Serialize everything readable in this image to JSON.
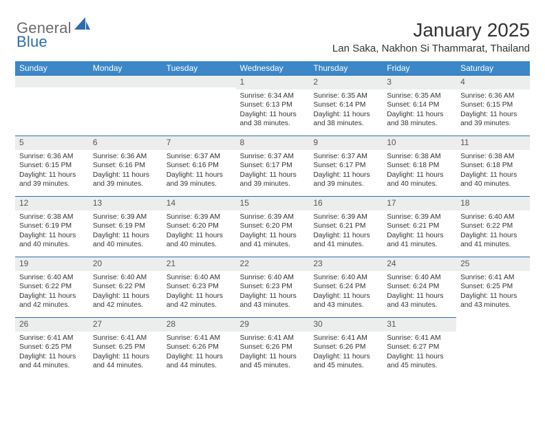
{
  "logo": {
    "general": "General",
    "blue": "Blue"
  },
  "title": "January 2025",
  "location": "Lan Saka, Nakhon Si Thammarat, Thailand",
  "colors": {
    "header_bg": "#3b87c8",
    "header_text": "#ffffff",
    "daynum_bg": "#eceded",
    "daynum_text": "#555555",
    "border_top": "#2a6db0",
    "body_text": "#333333",
    "logo_gray": "#6b6b6b",
    "logo_blue": "#2a6db0"
  },
  "day_names": [
    "Sunday",
    "Monday",
    "Tuesday",
    "Wednesday",
    "Thursday",
    "Friday",
    "Saturday"
  ],
  "weeks": [
    [
      null,
      null,
      null,
      {
        "n": "1",
        "sr": "6:34 AM",
        "ss": "6:13 PM",
        "dl": "11 hours and 38 minutes."
      },
      {
        "n": "2",
        "sr": "6:35 AM",
        "ss": "6:14 PM",
        "dl": "11 hours and 38 minutes."
      },
      {
        "n": "3",
        "sr": "6:35 AM",
        "ss": "6:14 PM",
        "dl": "11 hours and 38 minutes."
      },
      {
        "n": "4",
        "sr": "6:36 AM",
        "ss": "6:15 PM",
        "dl": "11 hours and 39 minutes."
      }
    ],
    [
      {
        "n": "5",
        "sr": "6:36 AM",
        "ss": "6:15 PM",
        "dl": "11 hours and 39 minutes."
      },
      {
        "n": "6",
        "sr": "6:36 AM",
        "ss": "6:16 PM",
        "dl": "11 hours and 39 minutes."
      },
      {
        "n": "7",
        "sr": "6:37 AM",
        "ss": "6:16 PM",
        "dl": "11 hours and 39 minutes."
      },
      {
        "n": "8",
        "sr": "6:37 AM",
        "ss": "6:17 PM",
        "dl": "11 hours and 39 minutes."
      },
      {
        "n": "9",
        "sr": "6:37 AM",
        "ss": "6:17 PM",
        "dl": "11 hours and 39 minutes."
      },
      {
        "n": "10",
        "sr": "6:38 AM",
        "ss": "6:18 PM",
        "dl": "11 hours and 40 minutes."
      },
      {
        "n": "11",
        "sr": "6:38 AM",
        "ss": "6:18 PM",
        "dl": "11 hours and 40 minutes."
      }
    ],
    [
      {
        "n": "12",
        "sr": "6:38 AM",
        "ss": "6:19 PM",
        "dl": "11 hours and 40 minutes."
      },
      {
        "n": "13",
        "sr": "6:39 AM",
        "ss": "6:19 PM",
        "dl": "11 hours and 40 minutes."
      },
      {
        "n": "14",
        "sr": "6:39 AM",
        "ss": "6:20 PM",
        "dl": "11 hours and 40 minutes."
      },
      {
        "n": "15",
        "sr": "6:39 AM",
        "ss": "6:20 PM",
        "dl": "11 hours and 41 minutes."
      },
      {
        "n": "16",
        "sr": "6:39 AM",
        "ss": "6:21 PM",
        "dl": "11 hours and 41 minutes."
      },
      {
        "n": "17",
        "sr": "6:39 AM",
        "ss": "6:21 PM",
        "dl": "11 hours and 41 minutes."
      },
      {
        "n": "18",
        "sr": "6:40 AM",
        "ss": "6:22 PM",
        "dl": "11 hours and 41 minutes."
      }
    ],
    [
      {
        "n": "19",
        "sr": "6:40 AM",
        "ss": "6:22 PM",
        "dl": "11 hours and 42 minutes."
      },
      {
        "n": "20",
        "sr": "6:40 AM",
        "ss": "6:22 PM",
        "dl": "11 hours and 42 minutes."
      },
      {
        "n": "21",
        "sr": "6:40 AM",
        "ss": "6:23 PM",
        "dl": "11 hours and 42 minutes."
      },
      {
        "n": "22",
        "sr": "6:40 AM",
        "ss": "6:23 PM",
        "dl": "11 hours and 43 minutes."
      },
      {
        "n": "23",
        "sr": "6:40 AM",
        "ss": "6:24 PM",
        "dl": "11 hours and 43 minutes."
      },
      {
        "n": "24",
        "sr": "6:40 AM",
        "ss": "6:24 PM",
        "dl": "11 hours and 43 minutes."
      },
      {
        "n": "25",
        "sr": "6:41 AM",
        "ss": "6:25 PM",
        "dl": "11 hours and 43 minutes."
      }
    ],
    [
      {
        "n": "26",
        "sr": "6:41 AM",
        "ss": "6:25 PM",
        "dl": "11 hours and 44 minutes."
      },
      {
        "n": "27",
        "sr": "6:41 AM",
        "ss": "6:25 PM",
        "dl": "11 hours and 44 minutes."
      },
      {
        "n": "28",
        "sr": "6:41 AM",
        "ss": "6:26 PM",
        "dl": "11 hours and 44 minutes."
      },
      {
        "n": "29",
        "sr": "6:41 AM",
        "ss": "6:26 PM",
        "dl": "11 hours and 45 minutes."
      },
      {
        "n": "30",
        "sr": "6:41 AM",
        "ss": "6:26 PM",
        "dl": "11 hours and 45 minutes."
      },
      {
        "n": "31",
        "sr": "6:41 AM",
        "ss": "6:27 PM",
        "dl": "11 hours and 45 minutes."
      },
      null
    ]
  ],
  "labels": {
    "sunrise": "Sunrise:",
    "sunset": "Sunset:",
    "daylight": "Daylight:"
  }
}
